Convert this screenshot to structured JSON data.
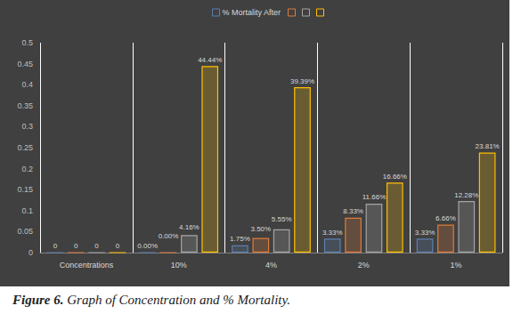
{
  "chart_data": {
    "type": "bar",
    "categories": [
      "Concentrations",
      "10%",
      "4%",
      "2%",
      "1%"
    ],
    "series": [
      {
        "name": "% Mortality After",
        "color": "#5b7fb0",
        "values": [
          0,
          0,
          0.0175,
          0.0333,
          0.0333
        ],
        "value_labels": [
          "0",
          "0.00%",
          "1.75%",
          "3.33%",
          "3.33%"
        ]
      },
      {
        "name": null,
        "color": "#e07b39",
        "values": [
          0,
          0,
          0.035,
          0.0833,
          0.0666
        ],
        "value_labels": [
          "0",
          "0.00%",
          "3.50%",
          "8.33%",
          "6.66%"
        ]
      },
      {
        "name": null,
        "color": "#a5a5a5",
        "values": [
          0,
          0.0416,
          0.0555,
          0.1166,
          0.1228
        ],
        "value_labels": [
          "0",
          "4.16%",
          "5.55%",
          "11.66%",
          "12.28%"
        ]
      },
      {
        "name": null,
        "color": "#ffc000",
        "values": [
          0,
          0.4444,
          0.3939,
          0.1666,
          0.2381
        ],
        "value_labels": [
          "0",
          "44.44%",
          "39.39%",
          "16.66%",
          "23.81%"
        ]
      }
    ],
    "ylim": [
      0,
      0.5
    ],
    "yticks": [
      0,
      0.05,
      0.1,
      0.15,
      0.2,
      0.25,
      0.3,
      0.35,
      0.4,
      0.45,
      0.5
    ],
    "grid": "x",
    "legend": "top",
    "data_labels": true
  },
  "caption": {
    "label": "Figure 6.",
    "text": "Graph of Concentration and % Mortality."
  }
}
